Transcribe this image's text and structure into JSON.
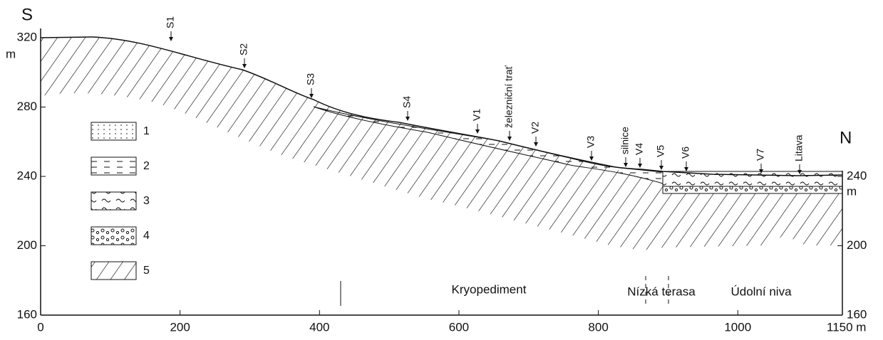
{
  "side_labels": {
    "left": "S",
    "right": "N"
  },
  "x_axis": {
    "ticks": [
      0,
      200,
      400,
      600,
      800,
      1000,
      {
        "value": 1150,
        "label": "1150 m"
      }
    ]
  },
  "left_axis": {
    "ticks": [
      160,
      200,
      240,
      280,
      320
    ],
    "unit": "m"
  },
  "right_axis": {
    "ticks": [
      160,
      200,
      240
    ],
    "unit": "m"
  },
  "markers": [
    "S1",
    "S2",
    "S3",
    "S4",
    "V1",
    "železniční trať",
    "V2",
    "V3",
    "silnice",
    "V4",
    "V5",
    "V6",
    "V7",
    "Litava"
  ],
  "legend": [
    "1",
    "2",
    "3",
    "4",
    "5"
  ],
  "zones": [
    "Kryopediment",
    "Nízká terasa",
    "Údolní niva"
  ]
}
